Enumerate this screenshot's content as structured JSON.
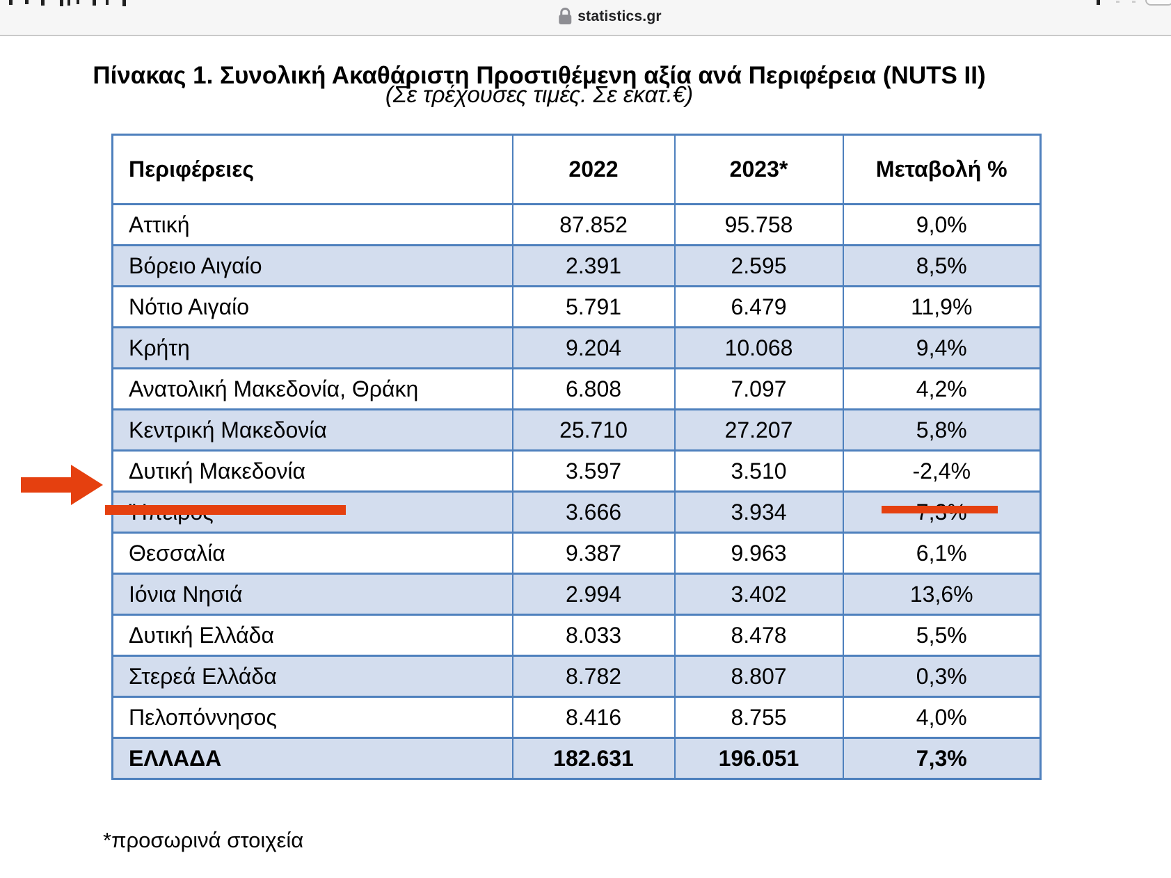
{
  "browser": {
    "url": "statistics.gr"
  },
  "page": {
    "title": "Πίνακας 1. Συνολική Ακαθάριστη Προστιθέμενη αξία ανά  Περιφέρεια (NUTS II)",
    "subtitle": "(Σε τρέχουσες τιμές. Σε εκατ.€)",
    "footnote": "*προσωρινά στοιχεία"
  },
  "chart_data": {
    "type": "table",
    "title": "Πίνακας 1. Συνολική Ακαθάριστη Προστιθέμενη αξία ανά Περιφέρεια (NUTS II)",
    "units_note": "Σε τρέχουσες τιμές. Σε εκατ.€",
    "columns": [
      "Περιφέρειες",
      "2022",
      "2023*",
      "Μεταβολή %"
    ],
    "rows": [
      [
        "Αττική",
        "87.852",
        "95.758",
        "9,0%"
      ],
      [
        "Βόρειο Αιγαίο",
        "2.391",
        "2.595",
        "8,5%"
      ],
      [
        "Νότιο Αιγαίο",
        "5.791",
        "6.479",
        "11,9%"
      ],
      [
        "Κρήτη",
        "9.204",
        "10.068",
        "9,4%"
      ],
      [
        "Ανατολική Μακεδονία, Θράκη",
        "6.808",
        "7.097",
        "4,2%"
      ],
      [
        "Κεντρική Μακεδονία",
        "25.710",
        "27.207",
        "5,8%"
      ],
      [
        "Δυτική Μακεδονία",
        "3.597",
        "3.510",
        "-2,4%"
      ],
      [
        "Ήπειρος",
        "3.666",
        "3.934",
        "7,3%"
      ],
      [
        "Θεσσαλία",
        "9.387",
        "9.963",
        "6,1%"
      ],
      [
        "Ιόνια Νησιά",
        "2.994",
        "3.402",
        "13,6%"
      ],
      [
        "Δυτική Ελλάδα",
        "8.033",
        "8.478",
        "5,5%"
      ],
      [
        "Στερεά Ελλάδα",
        "8.782",
        "8.807",
        "0,3%"
      ],
      [
        "Πελοπόννησος",
        "8.416",
        "8.755",
        "4,0%"
      ]
    ],
    "total_row": [
      "ΕΛΛΑΔΑ",
      "182.631",
      "196.051",
      "7,3%"
    ],
    "highlighted_row": "Δυτική Μακεδονία",
    "highlighted_value": "-2,4%",
    "footnote": "*προσωρινά στοιχεία"
  },
  "colors": {
    "table_border": "#4e80bd",
    "row_alt_fill": "#d3ddee",
    "annotation_red": "#e5400f"
  }
}
